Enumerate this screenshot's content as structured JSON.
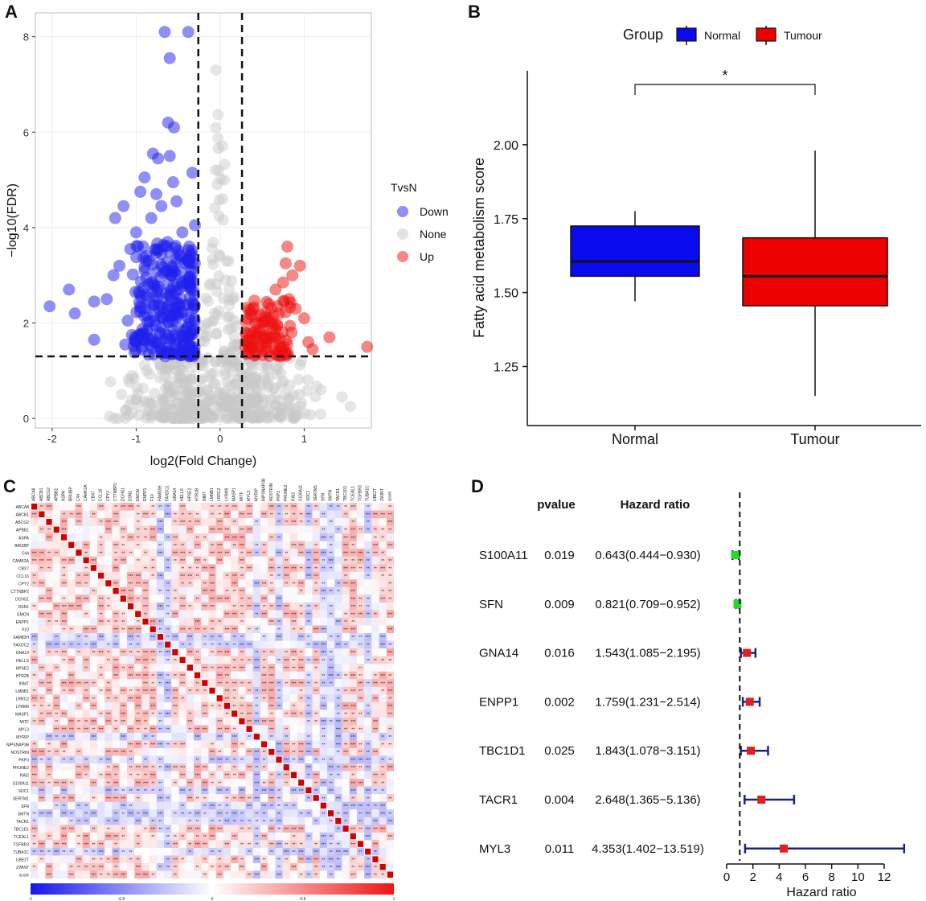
{
  "panels": {
    "A": "A",
    "B": "B",
    "C": "C",
    "D": "D"
  },
  "colors": {
    "down": "#2020ee",
    "none": "#c8c8c8",
    "up": "#ee1010",
    "normal": "#0a0aee",
    "tumour": "#ee0000",
    "hr_low": "#22dd22",
    "hr_high": "#e02020",
    "ci": "#1a237e"
  },
  "chart_data": [
    {
      "type": "scatter",
      "panel": "A",
      "title": "",
      "xlabel": "log2(Fold Change)",
      "ylabel": "−log10(FDR)",
      "xlim": [
        -2.2,
        1.8
      ],
      "ylim": [
        -0.2,
        8.5
      ],
      "xticks": [
        -2,
        -1,
        0,
        1
      ],
      "yticks": [
        0,
        2,
        4,
        6,
        8
      ],
      "threshold_lines": {
        "x": [
          -0.26,
          0.26
        ],
        "y": 1.3
      },
      "legend": {
        "title": "TvsN",
        "entries": [
          "Down",
          "None",
          "Up"
        ]
      },
      "points_down": [
        [
          -2.03,
          2.35
        ],
        [
          -1.8,
          2.7
        ],
        [
          -1.73,
          2.2
        ],
        [
          -1.5,
          1.65
        ],
        [
          -1.5,
          2.45
        ],
        [
          -1.35,
          2.5
        ],
        [
          -1.27,
          3.0
        ],
        [
          -1.2,
          3.2
        ],
        [
          -1.13,
          1.55
        ],
        [
          -1.05,
          1.75
        ],
        [
          -1.0,
          3.9
        ],
        [
          -0.97,
          2.65
        ],
        [
          -0.95,
          4.75
        ],
        [
          -0.9,
          5.05
        ],
        [
          -0.88,
          3.3
        ],
        [
          -0.85,
          1.9
        ],
        [
          -0.82,
          4.2
        ],
        [
          -0.8,
          5.55
        ],
        [
          -0.76,
          4.7
        ],
        [
          -0.74,
          5.45
        ],
        [
          -0.7,
          4.45
        ],
        [
          -0.7,
          3.45
        ],
        [
          -0.66,
          8.1
        ],
        [
          -0.62,
          6.2
        ],
        [
          -0.6,
          7.55
        ],
        [
          -0.56,
          4.95
        ],
        [
          -0.55,
          6.1
        ],
        [
          -0.52,
          4.55
        ],
        [
          -0.48,
          2.4
        ],
        [
          -0.45,
          3.9
        ],
        [
          -0.38,
          8.1
        ],
        [
          -0.33,
          5.15
        ],
        [
          -0.3,
          4.05
        ],
        [
          -1.25,
          4.2
        ],
        [
          -1.15,
          4.45
        ],
        [
          -1.07,
          3.55
        ],
        [
          -0.93,
          1.45
        ],
        [
          -0.78,
          1.6
        ],
        [
          -0.68,
          2.1
        ],
        [
          -0.58,
          3.0
        ],
        [
          -0.42,
          1.7
        ],
        [
          -0.35,
          2.9
        ],
        [
          -0.9,
          2.3
        ],
        [
          -1.1,
          2.05
        ],
        [
          -0.6,
          5.5
        ]
      ],
      "points_up": [
        [
          0.35,
          1.5
        ],
        [
          0.4,
          1.8
        ],
        [
          0.45,
          1.5
        ],
        [
          0.5,
          2.0
        ],
        [
          0.55,
          1.6
        ],
        [
          0.58,
          2.4
        ],
        [
          0.62,
          1.9
        ],
        [
          0.66,
          2.7
        ],
        [
          0.7,
          2.2
        ],
        [
          0.72,
          1.5
        ],
        [
          0.75,
          2.85
        ],
        [
          0.78,
          3.25
        ],
        [
          0.8,
          3.6
        ],
        [
          0.82,
          2.5
        ],
        [
          0.86,
          3.0
        ],
        [
          0.9,
          2.3
        ],
        [
          0.95,
          3.2
        ],
        [
          1.0,
          2.1
        ],
        [
          1.05,
          1.6
        ],
        [
          1.1,
          1.45
        ],
        [
          1.3,
          1.7
        ],
        [
          1.75,
          1.5
        ],
        [
          0.85,
          1.8
        ],
        [
          0.68,
          2.35
        ]
      ]
    },
    {
      "type": "box",
      "panel": "B",
      "title": "",
      "xlabel": "",
      "ylabel": "Fatty acid metabolism score",
      "ylim": [
        1.05,
        2.25
      ],
      "yticks": [
        "1.25",
        "1.50",
        "1.75",
        "2.00"
      ],
      "legend": {
        "title": "Group",
        "entries": [
          "Normal",
          "Tumour"
        ]
      },
      "categories": [
        "Normal",
        "Tumour"
      ],
      "boxes": [
        {
          "name": "Normal",
          "min": 1.47,
          "q1": 1.555,
          "median": 1.605,
          "q3": 1.725,
          "max": 1.775
        },
        {
          "name": "Tumour",
          "min": 1.15,
          "q1": 1.455,
          "median": 1.555,
          "q3": 1.685,
          "max": 1.98
        }
      ],
      "annotation": "*"
    },
    {
      "type": "heatmap",
      "panel": "C",
      "title": "",
      "genes": [
        "ABCA8",
        "ABCB1",
        "ABCG2",
        "APBB1",
        "ASPA",
        "BRI3BP",
        "C44",
        "CAMK2A",
        "CBX7",
        "CCL16",
        "CPY2",
        "CTTNBP2",
        "DCHS1",
        "DSN1",
        "EMCN",
        "ENPP1",
        "F10",
        "FAM83H",
        "FAXDC2",
        "GNA14",
        "HELLS",
        "HPSE2",
        "HTR2B",
        "INMT",
        "LMNB1",
        "LRRC2",
        "LYRM9",
        "MASP1",
        "MITF",
        "MYL3",
        "MYRIP",
        "NIPSNAP3B",
        "NOSTRIN",
        "PKP3",
        "PRUNE2",
        "RAI2",
        "S100A11",
        "SDC1",
        "SERTM1",
        "SFN",
        "SMTN",
        "TACR1",
        "TBC1D1",
        "TCEAL1",
        "TGFBR3",
        "TUBA1C",
        "UBE2T",
        "ZWINT",
        "score"
      ],
      "colorbar_ticks": [
        "-1",
        "-0.5",
        "0",
        "0.5",
        "1"
      ],
      "colorbar_range": [
        -1,
        1
      ]
    },
    {
      "type": "forest",
      "panel": "D",
      "title": "",
      "xlabel": "Hazard ratio",
      "xlim": [
        0,
        13.5
      ],
      "xticks": [
        0,
        2,
        4,
        6,
        8,
        10,
        12
      ],
      "reference_line": 1,
      "headers": {
        "pvalue": "pvalue",
        "hr": "Hazard ratio"
      },
      "rows": [
        {
          "gene": "S100A11",
          "pvalue": "0.019",
          "hr_text": "0.643(0.444−0.930)",
          "hr": 0.643,
          "lo": 0.444,
          "hi": 0.93
        },
        {
          "gene": "SFN",
          "pvalue": "0.009",
          "hr_text": "0.821(0.709−0.952)",
          "hr": 0.821,
          "lo": 0.709,
          "hi": 0.952
        },
        {
          "gene": "GNA14",
          "pvalue": "0.016",
          "hr_text": "1.543(1.085−2.195)",
          "hr": 1.543,
          "lo": 1.085,
          "hi": 2.195
        },
        {
          "gene": "ENPP1",
          "pvalue": "0.002",
          "hr_text": "1.759(1.231−2.514)",
          "hr": 1.759,
          "lo": 1.231,
          "hi": 2.514
        },
        {
          "gene": "TBC1D1",
          "pvalue": "0.025",
          "hr_text": "1.843(1.078−3.151)",
          "hr": 1.843,
          "lo": 1.078,
          "hi": 3.151
        },
        {
          "gene": "TACR1",
          "pvalue": "0.004",
          "hr_text": "2.648(1.365−5.136)",
          "hr": 2.648,
          "lo": 1.365,
          "hi": 5.136
        },
        {
          "gene": "MYL3",
          "pvalue": "0.011",
          "hr_text": "4.353(1.402−13.519)",
          "hr": 4.353,
          "lo": 1.402,
          "hi": 13.519
        }
      ]
    }
  ]
}
